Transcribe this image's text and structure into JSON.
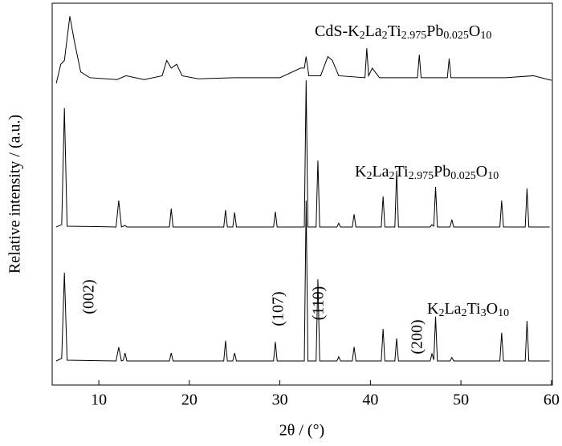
{
  "chart_data": {
    "type": "line",
    "x_label": "2θ / (°)",
    "y_label": "Relative intensity / (a.u.)",
    "xlim": [
      4.85,
      60.1
    ],
    "xticks": [
      10,
      20,
      30,
      40,
      50,
      60
    ],
    "ylim": [
      0,
      100
    ],
    "color": "#000000",
    "annotations": [
      "(002)",
      "(107)",
      "(110)",
      "(200)"
    ],
    "series": [
      {
        "name": "K2La2Ti3O10",
        "x": [
          5.3,
          5.9,
          6.2,
          6.5,
          11.9,
          12.2,
          12.5,
          12.7,
          12.9,
          13.1,
          17.8,
          18,
          18.2,
          23.8,
          24,
          24.2,
          24.8,
          25,
          25.2,
          29.3,
          29.5,
          29.7,
          32.7,
          32.9,
          33.1,
          34,
          34.2,
          34.4,
          36.3,
          36.5,
          36.7,
          38,
          38.2,
          38.4,
          41.2,
          41.4,
          41.6,
          42.7,
          42.9,
          43.1,
          46.6,
          46.8,
          47,
          47.2,
          47.4,
          48.8,
          49,
          49.2,
          54.3,
          54.5,
          54.7,
          57.1,
          57.3,
          57.5,
          59.8
        ],
        "values": [
          6.3,
          7,
          29.4,
          6.5,
          6.3,
          9.9,
          6.3,
          6.5,
          8.4,
          6.3,
          6.3,
          8.4,
          6.3,
          6.3,
          11.6,
          6.3,
          6.3,
          8.4,
          6.3,
          6.3,
          11.3,
          6.3,
          6.3,
          48.3,
          6.3,
          6.3,
          27.7,
          6.3,
          6.3,
          7.4,
          6.3,
          6.3,
          10,
          6.3,
          6.3,
          14.7,
          6.3,
          6.3,
          12.2,
          6.3,
          6.3,
          8.2,
          6.6,
          17.9,
          6.3,
          6.3,
          7.2,
          6.3,
          6.3,
          13.7,
          6.3,
          6.3,
          16.8,
          6.3,
          6.3
        ]
      },
      {
        "name": "K2La2Ti2.975Pb0.025O10",
        "x": [
          5.3,
          5.9,
          6.2,
          6.5,
          11.9,
          12.2,
          12.5,
          12.7,
          12.9,
          13.1,
          17.8,
          18,
          18.2,
          23.8,
          24,
          24.2,
          24.8,
          25,
          25.2,
          29.3,
          29.5,
          29.7,
          32.7,
          32.9,
          33.1,
          34,
          34.2,
          34.4,
          36.3,
          36.5,
          36.7,
          38,
          38.2,
          38.4,
          41.2,
          41.4,
          41.6,
          42.7,
          42.9,
          43.1,
          46.6,
          46.8,
          47,
          47.2,
          47.4,
          48.8,
          49,
          49.2,
          54.3,
          54.5,
          54.7,
          57.1,
          57.3,
          57.5,
          59.8
        ],
        "values": [
          41.4,
          42,
          72.5,
          41.6,
          41.4,
          48.3,
          41.4,
          41.6,
          41.8,
          41.4,
          41.4,
          46.2,
          41.4,
          41.4,
          45.8,
          41.4,
          41.4,
          45.2,
          41.4,
          41.4,
          45.4,
          41.4,
          41.4,
          79.8,
          41.4,
          41.4,
          58.8,
          41.4,
          41.4,
          42.4,
          41.4,
          41.4,
          44.7,
          41.4,
          41.4,
          49.4,
          41.4,
          41.4,
          56.1,
          41.4,
          41.4,
          42,
          41.6,
          51.9,
          41.4,
          41.4,
          43.3,
          41.4,
          41.4,
          48.3,
          41.4,
          41.4,
          51.5,
          41.4,
          41.4
        ]
      },
      {
        "name": "CdS-K2La2Ti2.975Pb0.025O10",
        "x": [
          5.3,
          5.8,
          6.2,
          6.8,
          7.3,
          8,
          9,
          12,
          13,
          15,
          17,
          17.5,
          18,
          18.6,
          19.2,
          21,
          25,
          30,
          32.3,
          32.7,
          32.9,
          33.2,
          34.5,
          35.3,
          35.8,
          36.5,
          39.4,
          39.6,
          39.8,
          40.2,
          41,
          45.2,
          45.4,
          45.6,
          48.5,
          48.7,
          48.9,
          55,
          58,
          60
        ],
        "values": [
          79,
          84,
          85,
          96.6,
          90,
          82,
          80.5,
          80,
          81,
          80,
          81,
          85,
          83,
          84,
          81,
          80.2,
          80.5,
          80.5,
          83,
          83,
          86,
          81,
          81,
          86,
          85,
          81,
          80.5,
          88.2,
          81,
          83,
          80.5,
          80.5,
          86.5,
          80.5,
          80.5,
          85.5,
          80.5,
          80.5,
          81,
          79.8
        ]
      }
    ]
  }
}
